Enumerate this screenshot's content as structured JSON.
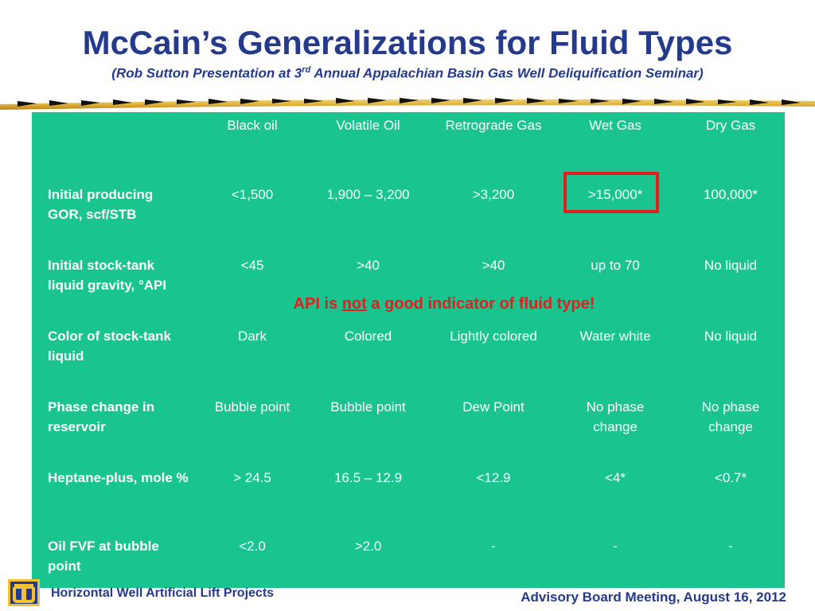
{
  "title": "McCain’s Generalizations for Fluid Types",
  "subtitle_pre": "(Rob Sutton Presentation at 3",
  "subtitle_sup": "rd",
  "subtitle_post": " Annual Appalachian Basin Gas Well Deliquification Seminar)",
  "columns": [
    "Black oil",
    "Volatile Oil",
    "Retrograde Gas",
    "Wet Gas",
    "Dry Gas"
  ],
  "rows": [
    {
      "label": "Initial producing GOR, scf/STB",
      "values": [
        "<1,500",
        "1,900 – 3,200",
        ">3,200",
        ">15,000*",
        "100,000*"
      ]
    },
    {
      "label": "Initial stock-tank liquid gravity, °API",
      "values": [
        "<45",
        ">40",
        ">40",
        "up to 70",
        "No liquid"
      ]
    },
    {
      "label": "Color of stock-tank liquid",
      "values": [
        "Dark",
        "Colored",
        "Lightly colored",
        "Water white",
        "No liquid"
      ]
    },
    {
      "label": "Phase change in reservoir",
      "values": [
        "Bubble point",
        "Bubble point",
        "Dew Point",
        "No phase change",
        "No phase change"
      ]
    },
    {
      "label": "Heptane-plus, mole %",
      "values": [
        "> 24.5",
        "16.5 – 12.9",
        "<12.9",
        "<4*",
        "<0.7*"
      ]
    },
    {
      "label": "Oil FVF at bubble point",
      "values": [
        "<2.0",
        ">2.0",
        "-",
        "-",
        "-"
      ]
    }
  ],
  "note": {
    "pre": "API is ",
    "emph": "not",
    "post": " a good indicator of fluid type!"
  },
  "footer_left": "Horizontal Well Artificial Lift Projects",
  "footer_right": "Advisory Board Meeting, August 16, 2012",
  "colors": {
    "title": "#243a8c",
    "panel": "#19c48e",
    "accent": "#e11f1f"
  }
}
